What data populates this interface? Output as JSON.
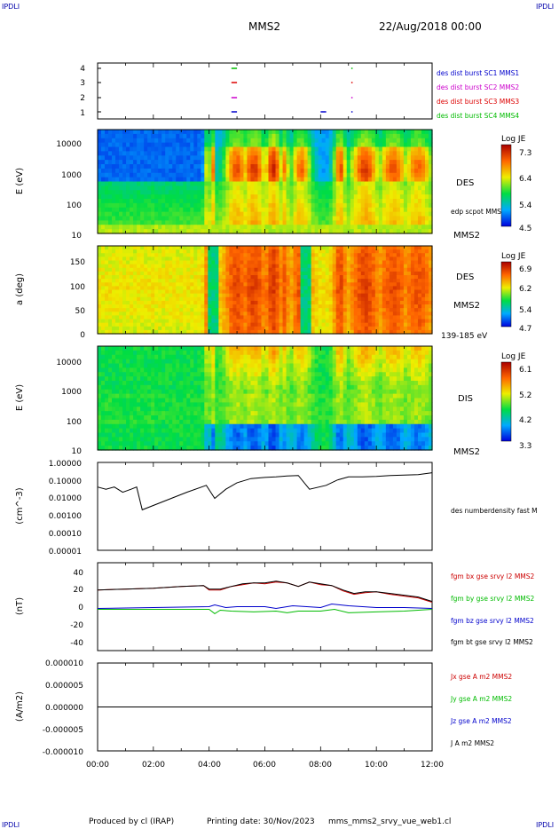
{
  "header": {
    "corner_tl": "IPDLI",
    "corner_tr": "IPDLI",
    "corner_bl": "IPDLI",
    "corner_br": "IPDLI",
    "spacecraft": "MMS2",
    "datetime": "22/Aug/2018 00:00"
  },
  "footer": {
    "produced_by": "Produced by cl (IRAP)",
    "printing_date": "Printing date: 30/Nov/2023",
    "filename": "mms_mms2_srvy_vue_web1.cl"
  },
  "chart_data": [
    {
      "type": "timeline",
      "y_ticks": [
        "4",
        "3",
        "2",
        "1"
      ],
      "legend": [
        {
          "label": "des dist burst SC1 MMS1",
          "color": "#0000cc"
        },
        {
          "label": "des dist burst SC2 MMS2",
          "color": "#cc00cc"
        },
        {
          "label": "des dist burst SC3 MMS3",
          "color": "#dd0000"
        },
        {
          "label": "des dist burst SC4 MMS4",
          "color": "#00bb00"
        }
      ],
      "intervals": [
        {
          "sc": 4,
          "start": 4.8,
          "end": 5.0
        },
        {
          "sc": 3,
          "start": 4.8,
          "end": 5.0
        },
        {
          "sc": 2,
          "start": 4.8,
          "end": 5.0
        },
        {
          "sc": 1,
          "start": 4.8,
          "end": 5.0
        },
        {
          "sc": 1,
          "start": 8.0,
          "end": 8.2
        },
        {
          "sc": 4,
          "start": 9.1,
          "end": 9.12
        },
        {
          "sc": 3,
          "start": 9.1,
          "end": 9.12
        },
        {
          "sc": 2,
          "start": 9.1,
          "end": 9.12
        },
        {
          "sc": 1,
          "start": 9.1,
          "end": 9.12
        }
      ]
    },
    {
      "type": "heatmap",
      "ylabel": "E (eV)",
      "y_ticks": [
        "10000",
        "1000",
        "100",
        "10"
      ],
      "instrument": "DES",
      "sublabel": "edp scpot MMS2",
      "footer_label": "MMS2",
      "colorbar": {
        "title": "Log JE",
        "max": "7.3",
        "mid1": "6.4",
        "mid2": "5.4",
        "min": "4.5"
      }
    },
    {
      "type": "heatmap",
      "ylabel": "a (deg)",
      "y_ticks": [
        "150",
        "100",
        "50",
        "0"
      ],
      "instrument": "DES",
      "sublabel": "MMS2",
      "footer_label": "139-185 eV",
      "colorbar": {
        "title": "Log JE",
        "max": "6.9",
        "mid1": "6.2",
        "mid2": "5.4",
        "min": "4.7"
      }
    },
    {
      "type": "heatmap",
      "ylabel": "E (eV)",
      "y_ticks": [
        "10000",
        "1000",
        "100",
        "10"
      ],
      "instrument": "DIS",
      "footer_label": "MMS2",
      "colorbar": {
        "title": "Log JE",
        "max": "6.1",
        "mid1": "5.2",
        "mid2": "4.2",
        "min": "3.3"
      }
    },
    {
      "type": "line",
      "ylabel": "(cm^-3)",
      "y_ticks": [
        "1.00000",
        "0.10000",
        "0.01000",
        "0.00100",
        "0.00010",
        "0.00001"
      ],
      "ylim": [
        1e-05,
        1.0
      ],
      "series": [
        {
          "name": "des numberdensity fast M",
          "color": "#000000",
          "x": [
            0.0,
            0.3,
            0.6,
            0.9,
            1.2,
            1.4,
            1.6,
            3.2,
            3.9,
            4.2,
            4.6,
            5.0,
            5.5,
            6.0,
            6.4,
            6.8,
            7.2,
            7.6,
            8.2,
            8.6,
            9.0,
            9.5,
            10.0,
            10.5,
            11.0,
            11.5,
            12.0
          ],
          "y": [
            0.04,
            0.03,
            0.04,
            0.02,
            0.03,
            0.04,
            0.002,
            0.02,
            0.05,
            0.009,
            0.03,
            0.07,
            0.12,
            0.14,
            0.15,
            0.17,
            0.18,
            0.03,
            0.05,
            0.1,
            0.15,
            0.15,
            0.16,
            0.18,
            0.19,
            0.2,
            0.26
          ]
        }
      ]
    },
    {
      "type": "line",
      "ylabel": "(nT)",
      "y_ticks": [
        "40",
        "20",
        "0",
        "-20",
        "-40"
      ],
      "ylim": [
        -50,
        50
      ],
      "series": [
        {
          "name": "fgm bx gse srvy l2 MMS2",
          "color": "#cc0000",
          "x": [
            0,
            1,
            2,
            3,
            3.8,
            4.0,
            4.4,
            4.8,
            5.2,
            5.6,
            6.0,
            6.4,
            6.8,
            7.2,
            7.6,
            8.0,
            8.4,
            8.8,
            9.2,
            9.6,
            10.0,
            10.5,
            11.0,
            11.5,
            12.0
          ],
          "y": [
            19,
            20,
            21,
            23,
            24,
            19,
            19,
            23,
            25,
            27,
            26,
            28,
            27,
            23,
            28,
            25,
            24,
            18,
            14,
            16,
            17,
            14,
            12,
            10,
            5
          ]
        },
        {
          "name": "fgm by gse srvy l2 MMS2",
          "color": "#00bb00",
          "x": [
            0,
            2,
            4.0,
            4.2,
            4.4,
            4.8,
            5.6,
            6.4,
            6.8,
            7.2,
            8.0,
            8.5,
            9.0,
            10.0,
            11.0,
            12.0
          ],
          "y": [
            -3,
            -3,
            -3,
            -8,
            -4,
            -5,
            -6,
            -5,
            -7,
            -5,
            -5,
            -3,
            -7,
            -6,
            -5,
            -3
          ]
        },
        {
          "name": "fgm bz gse srvy l2 MMS2",
          "color": "#0000cc",
          "x": [
            0,
            2,
            4.0,
            4.2,
            4.6,
            5.0,
            6.0,
            6.4,
            7.0,
            8.0,
            8.4,
            9.0,
            10.0,
            11.0,
            12.0
          ],
          "y": [
            -2,
            -1,
            0,
            2,
            -1,
            0,
            0,
            -2,
            1,
            -1,
            3,
            1,
            -1,
            -1,
            -2
          ]
        },
        {
          "name": "fgm bt gse srvy l2 MMS2",
          "color": "#000000",
          "x": [
            0,
            1,
            2,
            3,
            3.8,
            4.0,
            4.4,
            4.8,
            5.2,
            5.6,
            6.0,
            6.4,
            6.8,
            7.2,
            7.6,
            8.0,
            8.4,
            8.8,
            9.2,
            9.6,
            10.0,
            10.5,
            11.0,
            11.5,
            12.0
          ],
          "y": [
            19,
            20,
            21,
            23,
            24,
            20,
            20,
            23,
            26,
            27,
            27,
            29,
            27,
            23,
            28,
            26,
            24,
            19,
            15,
            17,
            17,
            15,
            13,
            11,
            6
          ]
        }
      ]
    },
    {
      "type": "line",
      "ylabel": "(A/m2)",
      "y_ticks": [
        "0.000010",
        "0.000005",
        "0.000000",
        "-0.000005",
        "-0.000010"
      ],
      "ylim": [
        -1e-05,
        1e-05
      ],
      "series": [
        {
          "name": "Jx gse A m2 MMS2",
          "color": "#cc0000",
          "x": [
            0,
            12
          ],
          "y": [
            0,
            0
          ]
        },
        {
          "name": "Jy gse A m2 MMS2",
          "color": "#00bb00",
          "x": [
            0,
            12
          ],
          "y": [
            0,
            0
          ]
        },
        {
          "name": "Jz gse A m2 MMS2",
          "color": "#0000cc",
          "x": [
            0,
            12
          ],
          "y": [
            0,
            0
          ]
        },
        {
          "name": "J A m2 MMS2",
          "color": "#000000",
          "x": [
            0,
            12
          ],
          "y": [
            0,
            0
          ]
        }
      ]
    }
  ],
  "x_axis": {
    "ticks": [
      "00:00",
      "02:00",
      "04:00",
      "06:00",
      "08:00",
      "10:00",
      "12:00"
    ],
    "range_hours": [
      0,
      12
    ]
  }
}
